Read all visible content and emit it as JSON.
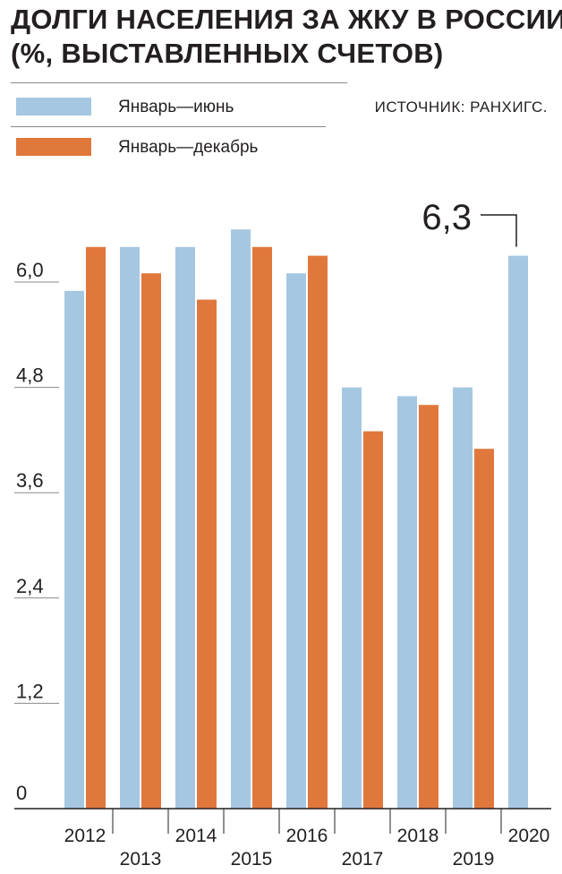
{
  "title_lines": [
    "ДОЛГИ НАСЕЛЕНИЯ ЗА ЖКУ В РОССИИ",
    "(%, ВЫСТАВЛЕННЫХ СЧЕТОВ)"
  ],
  "source": "ИСТОЧНИК: РАНХИГС.",
  "colors": {
    "jan_jun": "#a6c7e1",
    "jan_dec": "#e0783c",
    "axis": "#231f20",
    "rule": "#8a8a8a"
  },
  "chart_data": {
    "type": "bar",
    "title": "ДОЛГИ НАСЕЛЕНИЯ ЗА ЖКУ В РОССИИ (%, ВЫСТАВЛЕННЫХ СЧЕТОВ)",
    "categories": [
      "2012",
      "2013",
      "2014",
      "2015",
      "2016",
      "2017",
      "2018",
      "2019",
      "2020"
    ],
    "series": [
      {
        "name": "Январь—июнь",
        "values": [
          5.9,
          6.4,
          6.4,
          6.6,
          6.1,
          4.8,
          4.7,
          4.8,
          6.3
        ]
      },
      {
        "name": "Январь—декабрь",
        "values": [
          6.4,
          6.1,
          5.8,
          6.4,
          6.3,
          4.3,
          4.6,
          4.1,
          null
        ]
      }
    ],
    "yticks": [
      0,
      1.2,
      2.4,
      3.6,
      4.8,
      6.0
    ],
    "ytick_labels": [
      "0",
      "1,2",
      "2,4",
      "3,6",
      "4,8",
      "6,0"
    ],
    "ylim": [
      0,
      6.6
    ],
    "xlabel": "",
    "ylabel": "",
    "legend_position": "top-left",
    "annotation": {
      "text": "6,3",
      "category": "2020",
      "series": "Январь—июнь"
    }
  }
}
